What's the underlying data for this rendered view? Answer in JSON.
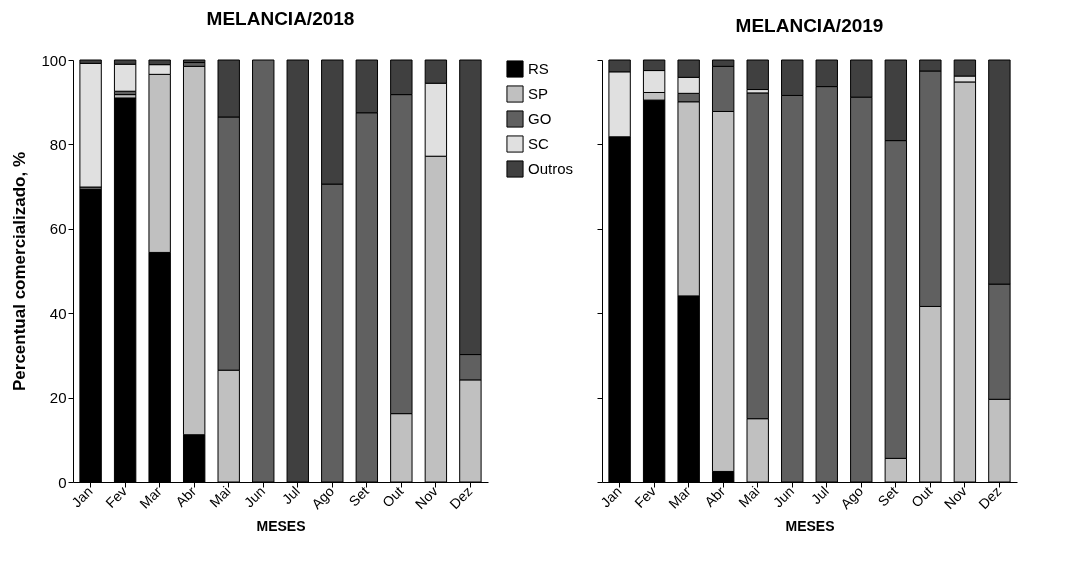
{
  "chart_data": [
    {
      "type": "bar",
      "title": "MELANCIA/2018",
      "xlabel": "MESES",
      "ylabel": "Percentual comercializado, %",
      "categories": [
        "Jan",
        "Fev",
        "Mar",
        "Abr",
        "Mai",
        "Jun",
        "Jul",
        "Ago",
        "Set",
        "Out",
        "Nov",
        "Dez"
      ],
      "stacked": true,
      "ylim": [
        0,
        100
      ],
      "yticks": [
        0,
        20,
        40,
        60,
        80,
        100
      ],
      "grid": false,
      "legend": "top right",
      "series": [
        {
          "name": "RS",
          "color": "#000000",
          "values": [
            69.3,
            91,
            54.4,
            11.2,
            null,
            null,
            null,
            null,
            null,
            null,
            null,
            null
          ]
        },
        {
          "name": "SP",
          "color": "#c0c0c0",
          "values": [
            null,
            0.8,
            42.2,
            87.3,
            26.5,
            null,
            null,
            null,
            null,
            16.2,
            77.2,
            24.2
          ]
        },
        {
          "name": "GO",
          "color": "#606060",
          "values": [
            0.6,
            0.8,
            null,
            0.9,
            60,
            100,
            null,
            70.6,
            87.5,
            75.6,
            null,
            6
          ]
        },
        {
          "name": "SC",
          "color": "#e0e0e0",
          "values": [
            29.3,
            6.4,
            2.3,
            null,
            null,
            null,
            null,
            null,
            null,
            null,
            17.3,
            null
          ]
        },
        {
          "name": "Outros",
          "color": "#404040",
          "values": [
            0.8,
            1,
            1.1,
            0.6,
            13.5,
            null,
            100,
            29.4,
            12.5,
            8.2,
            5.5,
            69.8
          ]
        }
      ]
    },
    {
      "type": "bar",
      "title": "MELANCIA/2019",
      "xlabel": "MESES",
      "categories": [
        "Jan",
        "Fev",
        "Mar",
        "Abr",
        "Mai",
        "Jun",
        "Jul",
        "Ago",
        "Set",
        "Out",
        "Nov",
        "Dez"
      ],
      "stacked": true,
      "ylim": [
        0,
        100
      ],
      "yticks": [
        0,
        20,
        40,
        60,
        80,
        100
      ],
      "grid": false,
      "tick_labels": "x",
      "series": [
        {
          "color": "#000000",
          "values": [
            81.8,
            90.5,
            44.1,
            2.5,
            null,
            null,
            null,
            null,
            null,
            null,
            null,
            null
          ]
        },
        {
          "color": "#c0c0c0",
          "values": [
            null,
            1.8,
            46,
            85.3,
            15,
            null,
            null,
            null,
            5.6,
            41.6,
            94.8,
            19.6
          ]
        },
        {
          "color": "#606060",
          "values": [
            null,
            null,
            2,
            10.7,
            77.2,
            91.6,
            93.7,
            91.2,
            75.3,
            55.8,
            null,
            27.3
          ]
        },
        {
          "color": "#e0e0e0",
          "values": [
            15.4,
            5.2,
            3.8,
            null,
            0.8,
            null,
            null,
            null,
            null,
            null,
            1.4,
            null
          ]
        },
        {
          "color": "#404040",
          "values": [
            2.8,
            2.5,
            4.1,
            1.5,
            7,
            8.4,
            6.3,
            8.8,
            19.1,
            2.6,
            3.8,
            53.1
          ]
        }
      ]
    }
  ]
}
